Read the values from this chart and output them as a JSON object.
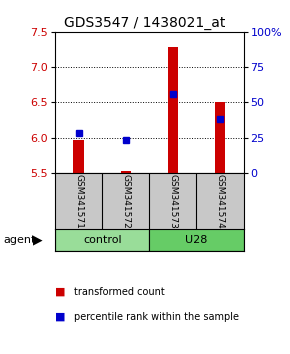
{
  "title": "GDS3547 / 1438021_at",
  "samples": [
    "GSM341571",
    "GSM341572",
    "GSM341573",
    "GSM341574"
  ],
  "red_bar_tops": [
    5.97,
    5.53,
    7.28,
    6.5
  ],
  "red_bar_bottom": 5.5,
  "blue_values": [
    6.07,
    5.97,
    6.62,
    6.27
  ],
  "ylim": [
    5.5,
    7.5
  ],
  "yticks": [
    5.5,
    6.0,
    6.5,
    7.0,
    7.5
  ],
  "right_yticks": [
    0,
    25,
    50,
    75,
    100
  ],
  "right_ylabels": [
    "0",
    "25",
    "50",
    "75",
    "100%"
  ],
  "red_color": "#CC0000",
  "blue_color": "#0000CC",
  "legend_red": "transformed count",
  "legend_blue": "percentile rank within the sample",
  "background_label": "#C8C8C8",
  "left_label_color": "#CC0000",
  "right_label_color": "#0000CC",
  "control_color": "#99DD99",
  "u28_color": "#66CC66"
}
